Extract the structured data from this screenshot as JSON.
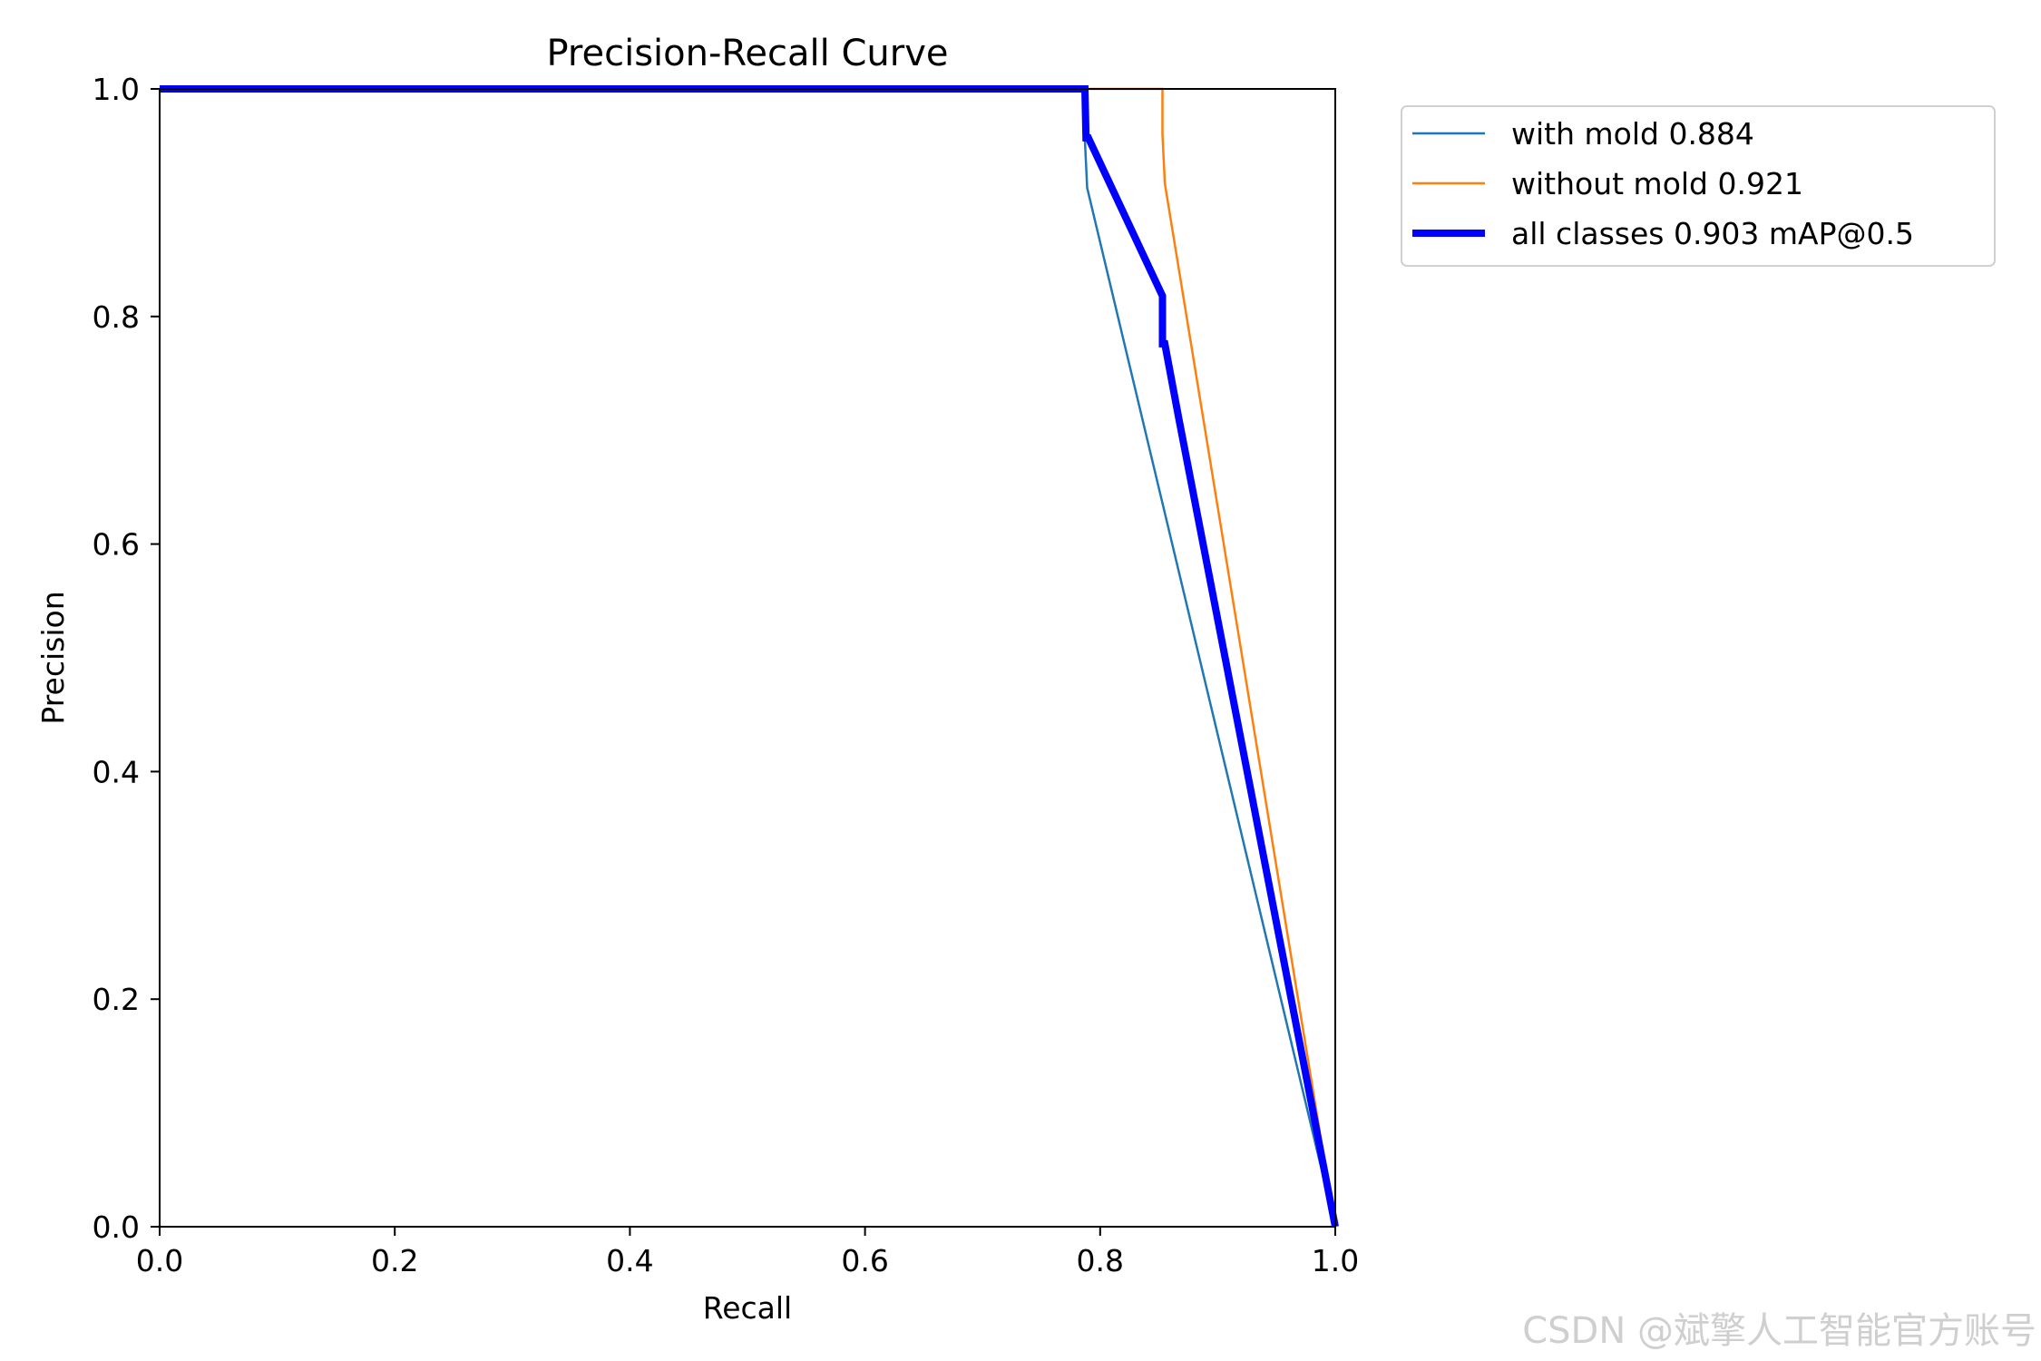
{
  "chart_data": {
    "type": "line",
    "title": "Precision-Recall Curve",
    "xlabel": "Recall",
    "ylabel": "Precision",
    "xlim": [
      0.0,
      1.0
    ],
    "ylim": [
      0.0,
      1.0
    ],
    "xticks": [
      "0.0",
      "0.2",
      "0.4",
      "0.6",
      "0.8",
      "1.0"
    ],
    "yticks": [
      "0.0",
      "0.2",
      "0.4",
      "0.6",
      "0.8",
      "1.0"
    ],
    "grid": false,
    "legend_position": "outside-top-right",
    "series": [
      {
        "name": "with mold 0.884",
        "color": "#1f77b4",
        "x": [
          0.0,
          0.787,
          0.787,
          0.789,
          1.0
        ],
        "y": [
          1.0,
          1.0,
          0.955,
          0.913,
          0.0
        ]
      },
      {
        "name": "without mold 0.921",
        "color": "#ff7f0e",
        "x": [
          0.0,
          0.853,
          0.853,
          0.855,
          1.0
        ],
        "y": [
          1.0,
          1.0,
          0.96,
          0.917,
          0.0
        ]
      },
      {
        "name": "all classes 0.903 mAP@0.5",
        "color": "#0000ff",
        "x": [
          0.0,
          0.787,
          0.788,
          0.79,
          0.853,
          0.853,
          0.855,
          0.867,
          1.0
        ],
        "y": [
          1.0,
          1.0,
          0.957,
          0.957,
          0.818,
          0.776,
          0.776,
          0.71,
          0.0
        ]
      }
    ]
  },
  "watermark": "CSDN @斌擎人工智能官方账号"
}
